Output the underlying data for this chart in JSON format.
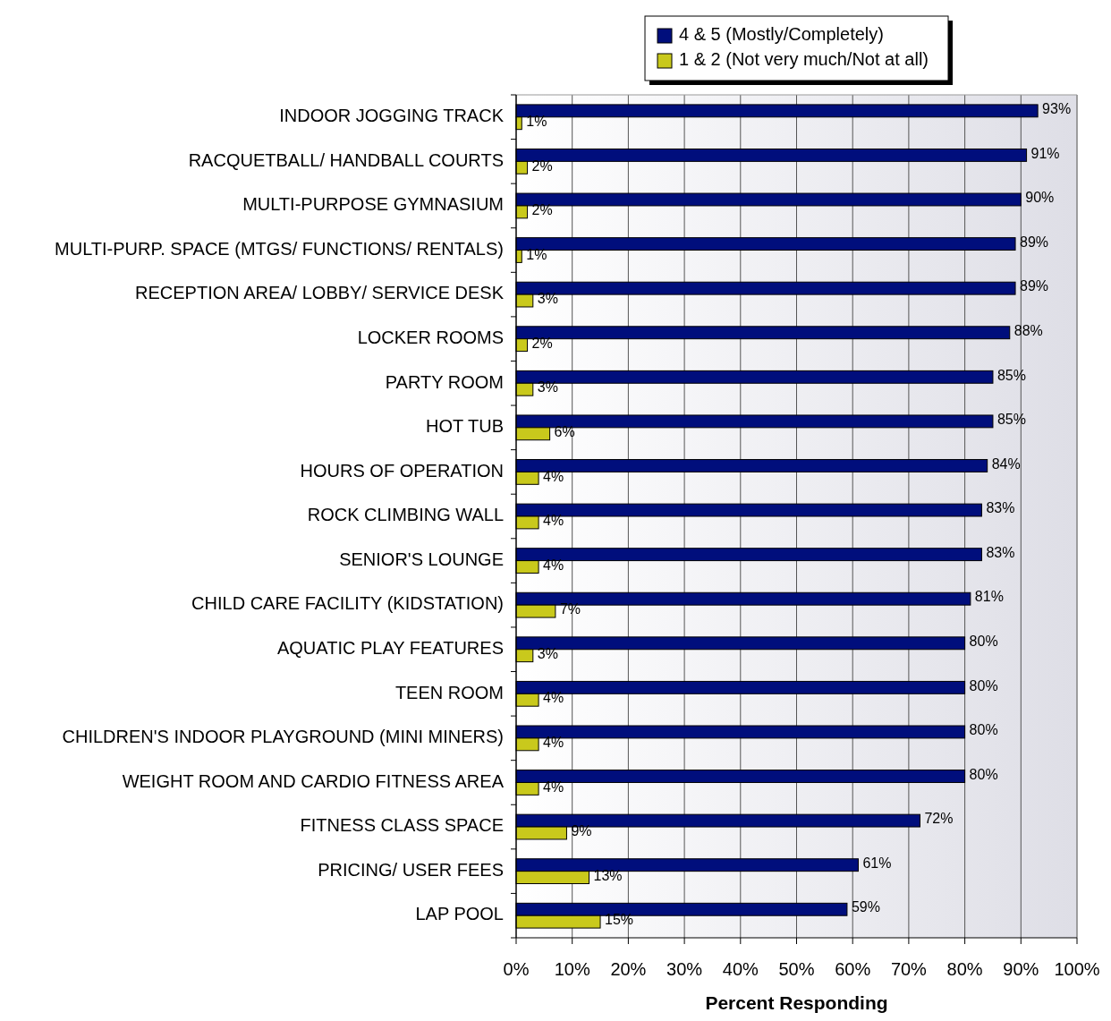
{
  "chart_data": {
    "type": "bar",
    "orientation": "horizontal",
    "categories": [
      "INDOOR JOGGING TRACK",
      "RACQUETBALL/ HANDBALL COURTS",
      "MULTI-PURPOSE GYMNASIUM",
      "MULTI-PURP. SPACE (MTGS/ FUNCTIONS/ RENTALS)",
      "RECEPTION AREA/ LOBBY/ SERVICE DESK",
      "LOCKER ROOMS",
      "PARTY ROOM",
      "HOT TUB",
      "HOURS OF OPERATION",
      "ROCK CLIMBING WALL",
      "SENIOR'S LOUNGE",
      "CHILD CARE FACILITY (KIDSTATION)",
      "AQUATIC PLAY FEATURES",
      "TEEN ROOM",
      "CHILDREN'S INDOOR PLAYGROUND (MINI MINERS)",
      "WEIGHT ROOM AND CARDIO FITNESS AREA",
      "FITNESS CLASS SPACE",
      "PRICING/ USER FEES",
      "LAP POOL"
    ],
    "series": [
      {
        "name": "4 & 5 (Mostly/Completely)",
        "color": "#000e7c",
        "values": [
          93,
          91,
          90,
          89,
          89,
          88,
          85,
          85,
          84,
          83,
          83,
          81,
          80,
          80,
          80,
          80,
          72,
          61,
          59
        ],
        "value_labels": [
          "93%",
          "91%",
          "90%",
          "89%",
          "89%",
          "88%",
          "85%",
          "85%",
          "84%",
          "83%",
          "83%",
          "81%",
          "80%",
          "80%",
          "80%",
          "80%",
          "72%",
          "61%",
          "59%"
        ]
      },
      {
        "name": "1 & 2 (Not very much/Not at all)",
        "color": "#c9c91c",
        "values": [
          1,
          2,
          2,
          1,
          3,
          2,
          3,
          6,
          4,
          4,
          4,
          7,
          3,
          4,
          4,
          4,
          9,
          13,
          15
        ],
        "value_labels": [
          "1%",
          "2%",
          "2%",
          "1%",
          "3%",
          "2%",
          "3%",
          "6%",
          "4%",
          "4%",
          "4%",
          "7%",
          "3%",
          "4%",
          "4%",
          "4%",
          "9%",
          "13%",
          "15%"
        ]
      }
    ],
    "xlabel": "Percent Responding",
    "xlim": [
      0,
      100
    ],
    "xticks": [
      {
        "value": 0,
        "label": "0%"
      },
      {
        "value": 10,
        "label": "10%"
      },
      {
        "value": 20,
        "label": "20%"
      },
      {
        "value": 30,
        "label": "30%"
      },
      {
        "value": 40,
        "label": "40%"
      },
      {
        "value": 50,
        "label": "50%"
      },
      {
        "value": 60,
        "label": "60%"
      },
      {
        "value": 70,
        "label": "70%"
      },
      {
        "value": 80,
        "label": "80%"
      },
      {
        "value": 90,
        "label": "90%"
      },
      {
        "value": 100,
        "label": "100%"
      }
    ],
    "grid": "x",
    "legend": "top"
  }
}
